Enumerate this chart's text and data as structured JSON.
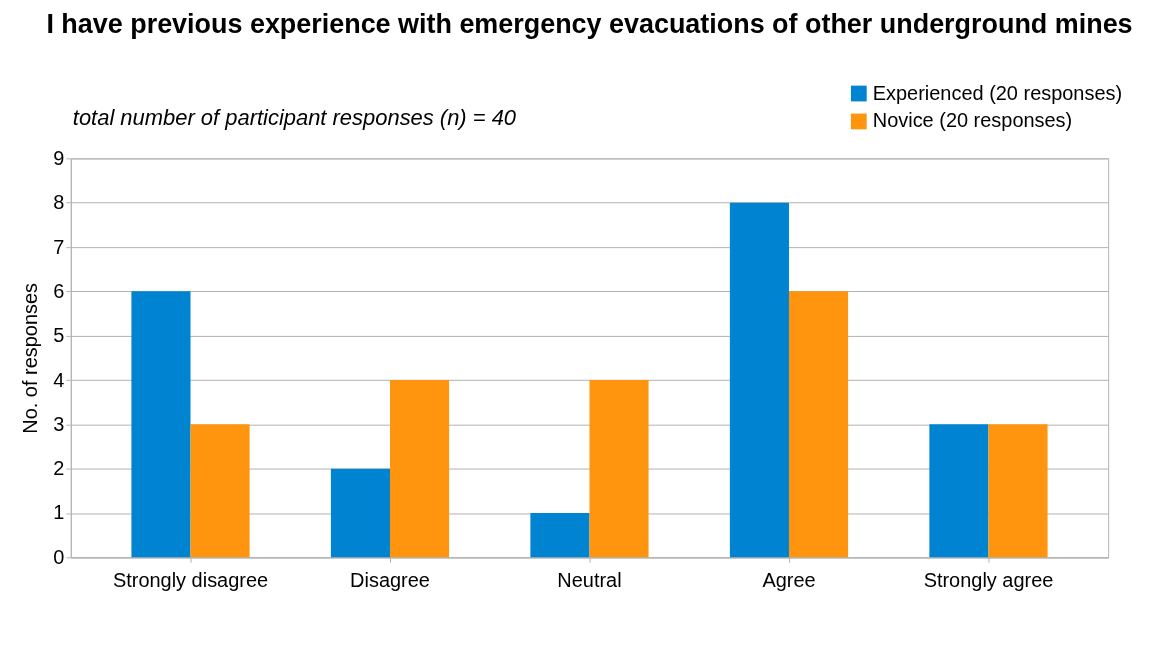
{
  "chart_data": {
    "type": "bar",
    "title": "I have previous experience with emergency evacuations of other underground mines",
    "ylabel": "No. of responses",
    "annotations": [
      "total number of participant responses (n) = 40"
    ],
    "categories": [
      "Strongly disagree",
      "Disagree",
      "Neutral",
      "Agree",
      "Strongly agree"
    ],
    "series": [
      {
        "name": "Experienced (20 responses)",
        "color": "#0084d1",
        "values": [
          6,
          2,
          1,
          8,
          3
        ]
      },
      {
        "name": "Novice (20 responses)",
        "color": "#ff950e",
        "values": [
          3,
          4,
          4,
          6,
          3
        ]
      }
    ],
    "ylim": [
      0,
      9
    ],
    "yticks": [
      0,
      1,
      2,
      3,
      4,
      5,
      6,
      7,
      8,
      9
    ],
    "grid": "y",
    "legend": "top right"
  }
}
